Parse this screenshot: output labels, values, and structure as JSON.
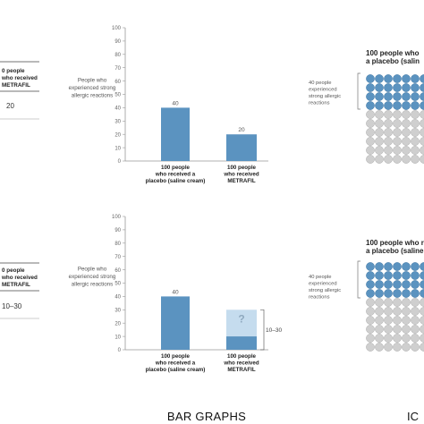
{
  "tables": [
    {
      "header_lines": [
        "0 people",
        "who received",
        "METRAFIL"
      ],
      "value": "20"
    },
    {
      "header_lines": [
        "0 people",
        "who received",
        "METRAFIL"
      ],
      "value": "10–30"
    }
  ],
  "colors": {
    "bar": "#5b93c0",
    "uncertain": "#c5dcee",
    "axis": "#999999",
    "dot_filled": "#5b93c0",
    "dot_empty": "#cfcfcf"
  },
  "chart_data": [
    {
      "type": "bar",
      "title": "",
      "ylabel_lines": [
        "People who",
        "experienced strong",
        "allergic reactions"
      ],
      "categories": [
        [
          "100 people",
          "who received a",
          "placebo (saline cream)"
        ],
        [
          "100 people",
          "who received",
          "METRAFIL"
        ]
      ],
      "values": [
        40,
        20
      ],
      "value_labels": [
        "40",
        "20"
      ],
      "ylim": [
        0,
        100
      ],
      "yticks": [
        0,
        10,
        20,
        30,
        40,
        50,
        60,
        70,
        80,
        90,
        100
      ]
    },
    {
      "type": "bar",
      "title": "",
      "ylabel_lines": [
        "People who",
        "experienced strong",
        "allergic reactions"
      ],
      "categories": [
        [
          "100 people",
          "who received a",
          "placebo (saline cream)"
        ],
        [
          "100 people",
          "who received",
          "METRAFIL"
        ]
      ],
      "values": [
        40,
        10
      ],
      "value_labels": [
        "40",
        ""
      ],
      "uncertainty": {
        "bar_index": 1,
        "low": 10,
        "high": 30,
        "label": "10–30",
        "marker": "?"
      },
      "ylim": [
        0,
        100
      ],
      "yticks": [
        0,
        10,
        20,
        30,
        40,
        50,
        60,
        70,
        80,
        90,
        100
      ]
    }
  ],
  "icon_arrays": [
    {
      "title_lines": [
        "100 people who",
        "a placebo (salin"
      ],
      "annotation_lines": [
        "40 people",
        "experienced",
        "strong allergic",
        "reactions"
      ],
      "filled": 40
    },
    {
      "title_lines": [
        "100 people who r",
        "a placebo (saline"
      ],
      "annotation_lines": [
        "40 people",
        "experienced",
        "strong allergic",
        "reactions"
      ],
      "filled": 40
    }
  ],
  "footer": {
    "bar_graphs_label": "BAR GRAPHS",
    "icon_label": "IC"
  }
}
